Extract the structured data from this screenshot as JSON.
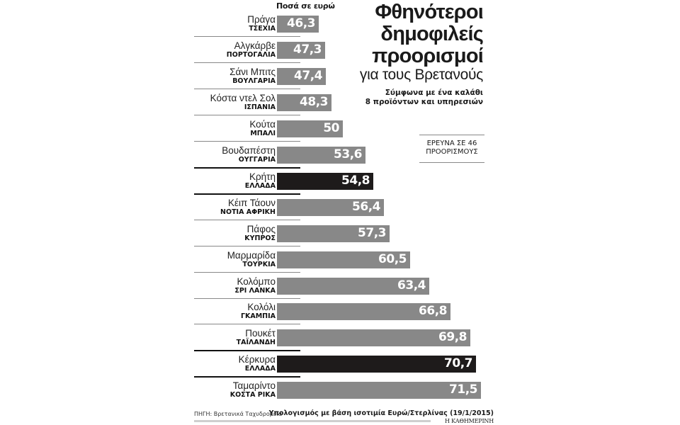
{
  "header": {
    "units_label": "Ποσά σε ευρώ",
    "title_lines": [
      "Φθηνότεροι",
      "δημοφιλείς",
      "προορισμοί"
    ],
    "subtitle": "για τους Βρετανούς",
    "basket_lines": [
      "Σύμφωνα με ένα καλάθι",
      "8 προϊόντων και υπηρεσιών"
    ],
    "survey_lines": [
      "ΕΡΕΥΝΑ ΣΕ 46",
      "ΠΡΟΟΡΙΣΜΟΥΣ"
    ]
  },
  "footer": {
    "source": "ΠΗΓΗ: Βρετανικά Ταχυδρομεία",
    "calculation_note": "Υπολογισμός με βάση ισοτιμία Ευρώ/Στερλίνας (19/1/2015)",
    "brand": "Η ΚΑΘΗΜΕΡΙΝΗ"
  },
  "colors": {
    "bar_default": "#888888",
    "bar_highlight": "#1e1b1b",
    "value_text": "#ffffff"
  },
  "rows": [
    {
      "city": "Πράγα",
      "country": "ΤΣΕΧΙΑ",
      "value_label": "46,3",
      "highlight": false
    },
    {
      "city": "Αλγκάρβε",
      "country": "ΠΟΡΤΟΓΑΛΙΑ",
      "value_label": "47,3",
      "highlight": false
    },
    {
      "city": "Σάνι Μπιτς",
      "country": "ΒΟΥΛΓΑΡΙΑ",
      "value_label": "47,4",
      "highlight": false
    },
    {
      "city": "Κόστα ντελ Σολ",
      "country": "ΙΣΠΑΝΙΑ",
      "value_label": "48,3",
      "highlight": false
    },
    {
      "city": "Κούτα",
      "country": "ΜΠΑΛΙ",
      "value_label": "50",
      "highlight": false
    },
    {
      "city": "Βουδαπέστη",
      "country": "ΟΥΓΓΑΡΙΑ",
      "value_label": "53,6",
      "highlight": false
    },
    {
      "city": "Κρήτη",
      "country": "ΕΛΛΑΔΑ",
      "value_label": "54,8",
      "highlight": true
    },
    {
      "city": "Κέιπ Τάουν",
      "country": "ΝΟΤΙΑ ΑΦΡΙΚΗ",
      "value_label": "56,4",
      "highlight": false
    },
    {
      "city": "Πάφος",
      "country": "ΚΥΠΡΟΣ",
      "value_label": "57,3",
      "highlight": false
    },
    {
      "city": "Μαρμαρίδα",
      "country": "ΤΟΥΡΚΙΑ",
      "value_label": "60,5",
      "highlight": false
    },
    {
      "city": "Κολόμπο",
      "country": "ΣΡΙ ΛΑΝΚΑ",
      "value_label": "63,4",
      "highlight": false
    },
    {
      "city": "Κολόλι",
      "country": "ΓΚΑΜΠΙΑ",
      "value_label": "66,8",
      "highlight": false
    },
    {
      "city": "Πουκέτ",
      "country": "ΤΑΪΛΑΝΔΗ",
      "value_label": "69,8",
      "highlight": false
    },
    {
      "city": "Κέρκυρα",
      "country": "ΕΛΛΑΔΑ",
      "value_label": "70,7",
      "highlight": true
    },
    {
      "city": "Ταμαρίντο",
      "country": "ΚΟΣΤΑ ΡΙΚΑ",
      "value_label": "71,5",
      "highlight": false
    }
  ],
  "chart_data": {
    "type": "bar",
    "orientation": "horizontal",
    "title": "Φθηνότεροι δημοφιλείς προορισμοί για τους Βρετανούς",
    "subtitle": "Σύμφωνα με ένα καλάθι 8 προϊόντων και υπηρεσιών",
    "xlabel": "Ποσά σε ευρώ",
    "ylabel": "",
    "categories": [
      "Πράγα (ΤΣΕΧΙΑ)",
      "Αλγκάρβε (ΠΟΡΤΟΓΑΛΙΑ)",
      "Σάνι Μπιτς (ΒΟΥΛΓΑΡΙΑ)",
      "Κόστα ντελ Σολ (ΙΣΠΑΝΙΑ)",
      "Κούτα (ΜΠΑΛΙ)",
      "Βουδαπέστη (ΟΥΓΓΑΡΙΑ)",
      "Κρήτη (ΕΛΛΑΔΑ)",
      "Κέιπ Τάουν (ΝΟΤΙΑ ΑΦΡΙΚΗ)",
      "Πάφος (ΚΥΠΡΟΣ)",
      "Μαρμαρίδα (ΤΟΥΡΚΙΑ)",
      "Κολόμπο (ΣΡΙ ΛΑΝΚΑ)",
      "Κολόλι (ΓΚΑΜΠΙΑ)",
      "Πουκέτ (ΤΑΪΛΑΝΔΗ)",
      "Κέρκυρα (ΕΛΛΑΔΑ)",
      "Ταμαρίντο (ΚΟΣΤΑ ΡΙΚΑ)"
    ],
    "values": [
      46.3,
      47.3,
      47.4,
      48.3,
      50,
      53.6,
      54.8,
      56.4,
      57.3,
      60.5,
      63.4,
      66.8,
      69.8,
      70.7,
      71.5
    ],
    "highlighted": [
      "Κρήτη (ΕΛΛΑΔΑ)",
      "Κέρκυρα (ΕΛΛΑΔΑ)"
    ],
    "annotations": [
      "ΕΡΕΥΝΑ ΣΕ 46 ΠΡΟΟΡΙΣΜΟΥΣ",
      "Υπολογισμός με βάση ισοτιμία Ευρώ/Στερλίνας (19/1/2015)",
      "ΠΗΓΗ: Βρετανικά Ταχυδρομεία"
    ],
    "xlim": [
      39.8,
      71.5
    ],
    "grid": false,
    "legend": "none"
  }
}
